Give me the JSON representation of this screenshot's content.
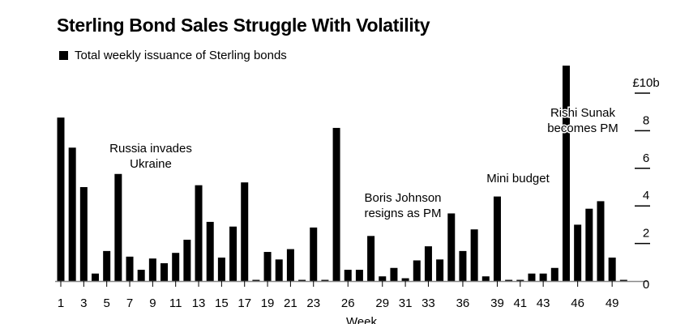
{
  "chart_data": {
    "type": "bar",
    "title": "Sterling Bond Sales Struggle With Volatility",
    "legend": [
      {
        "name": "Total weekly issuance of Sterling bonds",
        "color": "#000000"
      }
    ],
    "xlabel": "Week",
    "ylabel": "",
    "ylim": [
      0,
      10
    ],
    "y_axis_side": "right",
    "y_ticks": [
      0,
      2,
      4,
      6,
      8,
      10
    ],
    "y_tick_labels": [
      "0",
      "2",
      "4",
      "6",
      "8",
      "£10b"
    ],
    "x_tick_labels": [
      "1",
      "3",
      "5",
      "7",
      "9",
      "11",
      "13",
      "15",
      "17",
      "19",
      "21",
      "23",
      "26",
      "29",
      "31",
      "33",
      "36",
      "39",
      "41",
      "43",
      "46",
      "49"
    ],
    "x": [
      1,
      2,
      3,
      4,
      5,
      6,
      7,
      8,
      9,
      10,
      11,
      12,
      13,
      14,
      15,
      16,
      17,
      18,
      19,
      20,
      21,
      22,
      23,
      24,
      25,
      26,
      27,
      28,
      29,
      30,
      31,
      32,
      33,
      34,
      35,
      36,
      37,
      38,
      39,
      40,
      41,
      42,
      43,
      44,
      45,
      46,
      47,
      48,
      49,
      50
    ],
    "values": [
      8.7,
      7.1,
      5.0,
      0.4,
      1.6,
      5.7,
      1.3,
      0.6,
      1.2,
      0.95,
      1.5,
      2.2,
      5.1,
      3.15,
      1.25,
      2.9,
      5.25,
      0,
      1.55,
      1.15,
      1.7,
      0,
      2.85,
      0,
      8.15,
      0.6,
      0.6,
      2.4,
      0.25,
      0.7,
      0.15,
      1.1,
      1.85,
      1.15,
      3.6,
      1.6,
      2.75,
      0.25,
      4.5,
      0,
      0,
      0.4,
      0.4,
      0.7,
      11.5,
      3.0,
      3.85,
      4.25,
      1.25,
      0
    ],
    "annotations": [
      {
        "text": [
          "Russia invades",
          "Ukraine"
        ],
        "week": 9
      },
      {
        "text": [
          "Boris Johnson",
          "resigns as PM"
        ],
        "week": 29
      },
      {
        "text": [
          "Mini budget"
        ],
        "week": 39
      },
      {
        "text": [
          "Rishi Sunak",
          "becomes PM"
        ],
        "week": 45
      }
    ],
    "grid": false
  }
}
